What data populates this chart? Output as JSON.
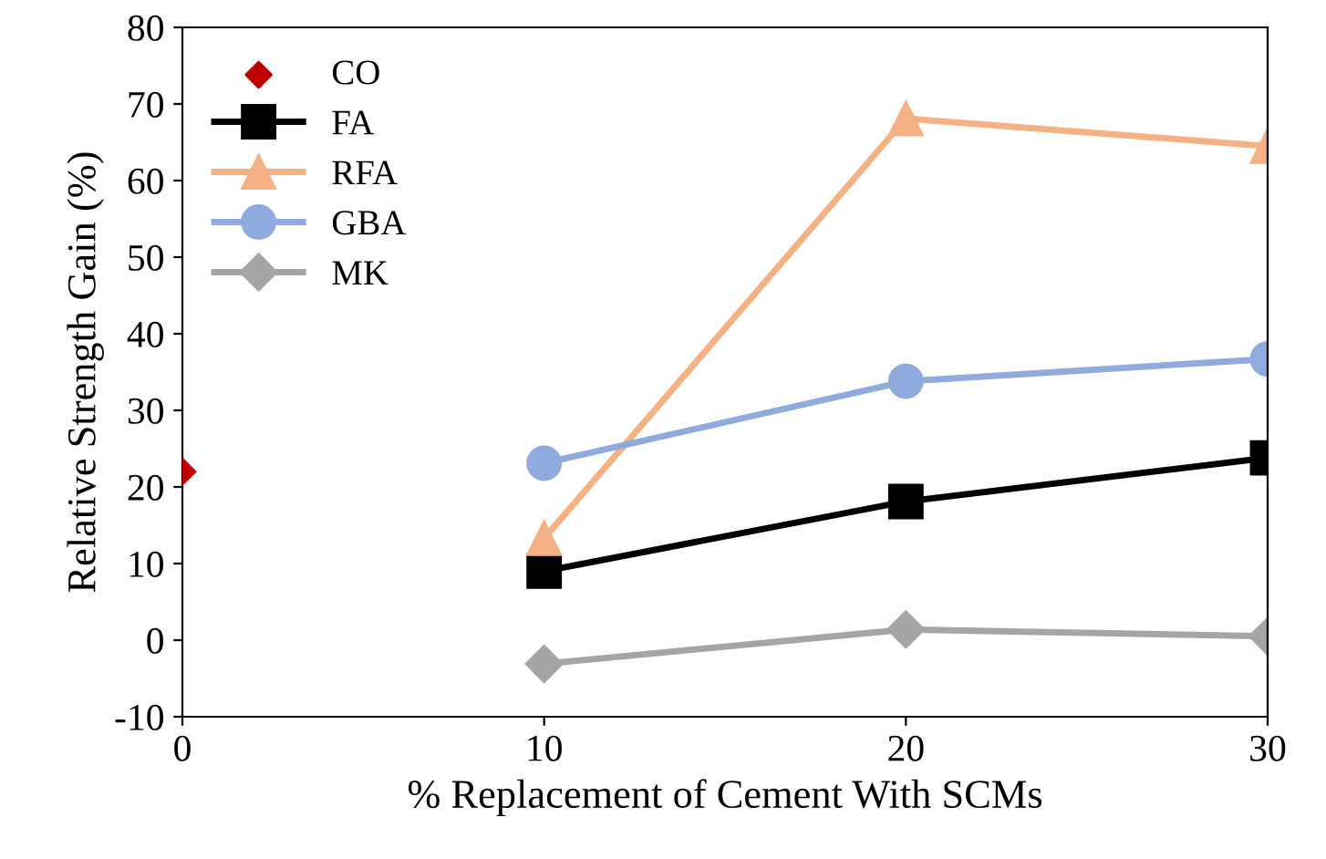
{
  "chart_data": {
    "type": "line",
    "xlabel": "% Replacement of Cement With SCMs",
    "ylabel": "Relative Strength Gain (%)",
    "xlim": [
      0,
      30
    ],
    "xticks": [
      0,
      10,
      20,
      30
    ],
    "ylim": [
      -10,
      80
    ],
    "yticks": [
      -10,
      0,
      10,
      20,
      30,
      40,
      50,
      60,
      70,
      80
    ],
    "grid": false,
    "legend": "top left",
    "series": [
      {
        "name": "CO",
        "type": "scatter",
        "color": "#c00000",
        "marker": "diamond",
        "x": [
          0
        ],
        "values": [
          22
        ]
      },
      {
        "name": "FA",
        "color": "#000000",
        "marker": "square",
        "x": [
          10,
          20,
          30
        ],
        "values": [
          9.0,
          18.1,
          23.8
        ]
      },
      {
        "name": "RFA",
        "color": "#f4b183",
        "marker": "triangle",
        "x": [
          10,
          20,
          30
        ],
        "values": [
          13.3,
          68.1,
          64.5
        ]
      },
      {
        "name": "GBA",
        "color": "#8faadc",
        "marker": "circle",
        "x": [
          10,
          20,
          30
        ],
        "values": [
          23.1,
          33.8,
          36.7
        ]
      },
      {
        "name": "MK",
        "color": "#a5a5a5",
        "marker": "diamond",
        "x": [
          10,
          20,
          30
        ],
        "values": [
          -3.1,
          1.4,
          0.5
        ]
      }
    ]
  }
}
